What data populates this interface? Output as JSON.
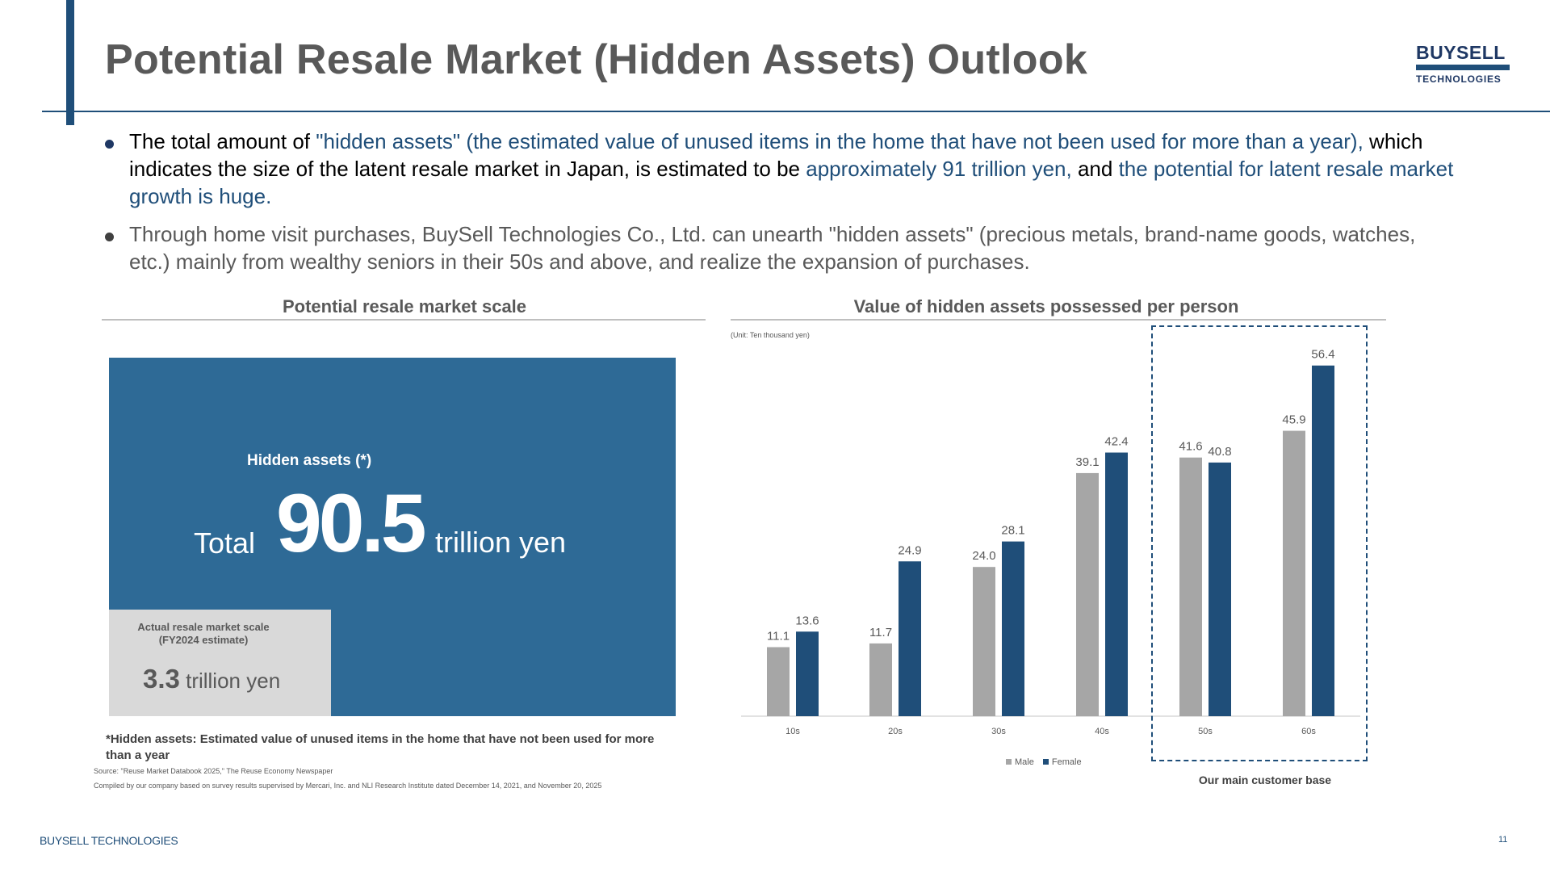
{
  "header": {
    "title": "Potential Resale Market (Hidden Assets) Outlook",
    "logo_top": "BUYSELL",
    "logo_bottom": "TECHNOLOGIES"
  },
  "bullets": {
    "b1": {
      "p1": "The total amount of ",
      "p2": "\"hidden assets\" (the estimated value of unused items in the home that have not been used for more than a year),",
      "p3": " which indicates the size of the latent resale market in Japan, is estimated to be ",
      "p4": "approximately 91 trillion yen,",
      "p5": " and ",
      "p6": "the potential for latent resale market growth is huge."
    },
    "b2": "Through home visit purchases, BuySell Technologies Co., Ltd. can unearth \"hidden assets\" (precious metals, brand-name goods, watches, etc.) mainly from wealthy seniors in their 50s and above, and realize the expansion of purchases."
  },
  "left_panel": {
    "title": "Potential resale market scale",
    "hidden_label": "Hidden assets (*)",
    "total_word": "Total",
    "total_value": "90.5",
    "total_unit": "trillion yen",
    "actual_label_line1": "Actual resale market scale",
    "actual_label_line2": "(FY2024 estimate)",
    "actual_value": "3.3",
    "actual_unit": " trillion yen",
    "footnote": "*Hidden assets: Estimated value of unused items in the home that have not been used for more than a year",
    "source": "Source: \"Reuse Market Databook 2025,\" The Reuse Economy Newspaper",
    "compiled": "Compiled by our company based on survey results supervised by Mercari, Inc. and NLI Research Institute dated December 14, 2021, and November 20, 2025",
    "colors": {
      "hidden": "#2e6a96",
      "actual": "#d9d9d9"
    }
  },
  "right_panel": {
    "title": "Value of hidden assets possessed per person",
    "unit_note": "(Unit: Ten thousand yen)",
    "customer_base_label": "Our main customer base"
  },
  "chart_data": {
    "type": "bar",
    "title": "Value of hidden assets possessed per person",
    "ylabel": "",
    "xlabel": "",
    "categories": [
      "10s",
      "20s",
      "30s",
      "40s",
      "50s",
      "60s"
    ],
    "series": [
      {
        "name": "Male",
        "values": [
          11.1,
          11.7,
          24.0,
          39.1,
          41.6,
          45.9
        ],
        "color": "#a6a6a6"
      },
      {
        "name": "Female",
        "values": [
          13.6,
          24.9,
          28.1,
          42.4,
          40.8,
          56.4
        ],
        "color": "#1f4e79"
      }
    ],
    "ylim": [
      0,
      60
    ],
    "grid": false,
    "legend": "bottom",
    "highlight": {
      "categories": [
        "50s",
        "60s"
      ]
    }
  },
  "footer": {
    "brand": "BUYSELL TECHNOLOGIES",
    "page": "11"
  }
}
